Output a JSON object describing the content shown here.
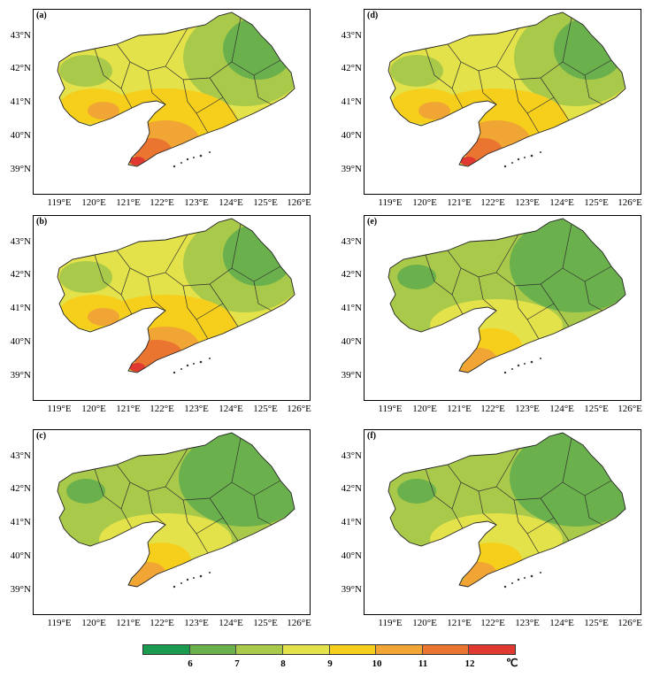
{
  "panels": [
    {
      "label": "(a)"
    },
    {
      "label": "(d)"
    },
    {
      "label": "(b)"
    },
    {
      "label": "(e)"
    },
    {
      "label": "(c)"
    },
    {
      "label": "(f)"
    }
  ],
  "axes": {
    "lat_labels": [
      "43°N",
      "42°N",
      "41°N",
      "40°N",
      "39°N"
    ],
    "lon_labels": [
      "119°E",
      "120°E",
      "121°E",
      "122°E",
      "123°E",
      "124°E",
      "125°E",
      "126°E"
    ]
  },
  "colorbar": {
    "ticks": [
      "6",
      "7",
      "8",
      "9",
      "10",
      "11",
      "12"
    ],
    "unit": "℃",
    "colors": [
      "#1a9b50",
      "#6ab04c",
      "#a9c94a",
      "#e3e24a",
      "#f6cf1c",
      "#f0a535",
      "#ea7530",
      "#e03a30"
    ]
  },
  "map_colors": {
    "c6": "#1a9b50",
    "c7": "#6ab04c",
    "c8": "#a9c94a",
    "c9": "#e3e24a",
    "c10": "#f6cf1c",
    "c11": "#f0a535",
    "c12": "#ea7530",
    "c13": "#e03a30"
  }
}
